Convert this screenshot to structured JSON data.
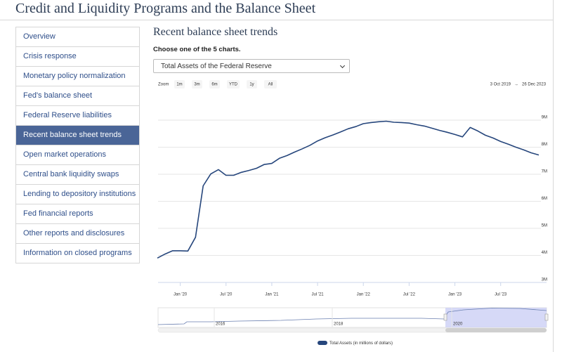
{
  "header": {
    "title": "Credit and Liquidity Programs and the Balance Sheet"
  },
  "nav": {
    "items": [
      "Overview",
      "Crisis response",
      "Monetary policy normalization",
      "Fed's balance sheet",
      "Federal Reserve liabilities",
      "Recent balance sheet trends",
      "Open market operations",
      "Central bank liquidity swaps",
      "Lending to depository institutions",
      "Fed financial reports",
      "Other reports and disclosures",
      "Information on closed programs"
    ],
    "active": 5
  },
  "main": {
    "title": "Recent balance sheet trends",
    "prompt": "Choose one of the 5 charts.",
    "select": "Total Assets of the Federal Reserve",
    "zoom_label": "Zoom",
    "zoom_buttons": [
      "1m",
      "3m",
      "6m",
      "YTD",
      "1y",
      "All"
    ],
    "date_from": "3 Oct 2019",
    "date_arrow": "→",
    "date_to": "26 Dec 2023"
  },
  "navigator": {
    "labels": [
      "2016",
      "2018",
      "2020"
    ]
  },
  "chart_data": {
    "type": "line",
    "x": [
      "2019-10",
      "2019-11",
      "2019-12",
      "2020-01",
      "2020-02",
      "2020-03",
      "2020-04",
      "2020-05",
      "2020-06",
      "2020-07",
      "2020-08",
      "2020-09",
      "2020-10",
      "2020-11",
      "2020-12",
      "2021-01",
      "2021-02",
      "2021-03",
      "2021-04",
      "2021-05",
      "2021-06",
      "2021-07",
      "2021-08",
      "2021-09",
      "2021-10",
      "2021-11",
      "2021-12",
      "2022-01",
      "2022-02",
      "2022-03",
      "2022-04",
      "2022-05",
      "2022-06",
      "2022-07",
      "2022-08",
      "2022-09",
      "2022-10",
      "2022-11",
      "2022-12",
      "2023-01",
      "2023-02",
      "2023-03",
      "2023-04",
      "2023-05",
      "2023-06",
      "2023-07",
      "2023-08",
      "2023-09",
      "2023-10",
      "2023-11",
      "2023-12"
    ],
    "series": [
      {
        "name": "Total Assets (in millions of dollars)",
        "color": "#26467c",
        "values": [
          3900000,
          4050000,
          4170000,
          4170000,
          4160000,
          4670000,
          6570000,
          7010000,
          7170000,
          6960000,
          6960000,
          7070000,
          7140000,
          7220000,
          7360000,
          7400000,
          7590000,
          7690000,
          7820000,
          7940000,
          8070000,
          8230000,
          8350000,
          8450000,
          8560000,
          8680000,
          8760000,
          8870000,
          8910000,
          8940000,
          8960000,
          8920000,
          8910000,
          8890000,
          8830000,
          8780000,
          8700000,
          8620000,
          8550000,
          8470000,
          8380000,
          8730000,
          8600000,
          8440000,
          8340000,
          8210000,
          8110000,
          8000000,
          7900000,
          7790000,
          7710000
        ]
      }
    ],
    "xlim": [
      "2019-10",
      "2023-12"
    ],
    "xticks": [
      {
        "value": "2020-01",
        "label": "Jan '20"
      },
      {
        "value": "2020-07",
        "label": "Jul '20"
      },
      {
        "value": "2021-01",
        "label": "Jan '21"
      },
      {
        "value": "2021-07",
        "label": "Jul '21"
      },
      {
        "value": "2022-01",
        "label": "Jan '22"
      },
      {
        "value": "2022-07",
        "label": "Jul '22"
      },
      {
        "value": "2023-01",
        "label": "Jan '23"
      },
      {
        "value": "2023-07",
        "label": "Jul '23"
      }
    ],
    "ylim": [
      3000000,
      9700000
    ],
    "yticks": [
      {
        "value": 3000000,
        "label": "3M"
      },
      {
        "value": 4000000,
        "label": "4M"
      },
      {
        "value": 5000000,
        "label": "5M"
      },
      {
        "value": 6000000,
        "label": "6M"
      },
      {
        "value": 7000000,
        "label": "7M"
      },
      {
        "value": 8000000,
        "label": "8M"
      },
      {
        "value": 9000000,
        "label": "9M"
      }
    ],
    "grid": true
  }
}
